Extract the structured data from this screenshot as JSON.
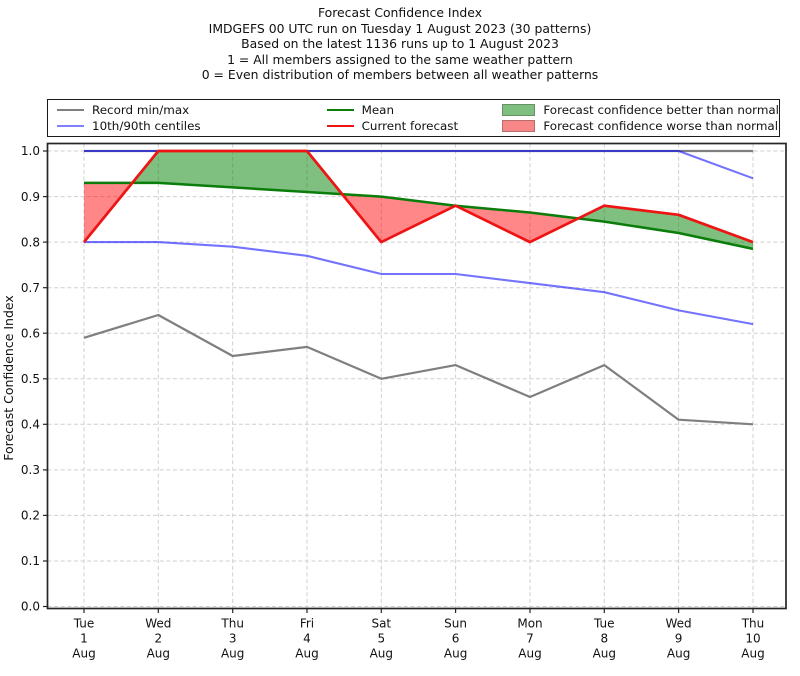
{
  "chart_data": {
    "type": "line",
    "title_lines": [
      "Forecast Confidence Index",
      "IMDGEFS 00 UTC run on Tuesday 1 August 2023 (30 patterns)",
      "Based on the latest 1136 runs up to 1 August 2023",
      "1 = All members assigned to the same weather pattern",
      "0 = Even distribution of members between all weather patterns"
    ],
    "ylabel": "Forecast Confidence Index",
    "ylim": [
      0.0,
      1.0
    ],
    "yticks": [
      0.0,
      0.1,
      0.2,
      0.3,
      0.4,
      0.5,
      0.6,
      0.7,
      0.8,
      0.9,
      1.0
    ],
    "grid": true,
    "legend_position": "top",
    "x": [
      {
        "weekday": "Tue",
        "day": "1",
        "month": "Aug"
      },
      {
        "weekday": "Wed",
        "day": "2",
        "month": "Aug"
      },
      {
        "weekday": "Thu",
        "day": "3",
        "month": "Aug"
      },
      {
        "weekday": "Fri",
        "day": "4",
        "month": "Aug"
      },
      {
        "weekday": "Sat",
        "day": "5",
        "month": "Aug"
      },
      {
        "weekday": "Sun",
        "day": "6",
        "month": "Aug"
      },
      {
        "weekday": "Mon",
        "day": "7",
        "month": "Aug"
      },
      {
        "weekday": "Tue",
        "day": "8",
        "month": "Aug"
      },
      {
        "weekday": "Wed",
        "day": "9",
        "month": "Aug"
      },
      {
        "weekday": "Thu",
        "day": "10",
        "month": "Aug"
      }
    ],
    "series": [
      {
        "name": "Record max",
        "role": "record_max",
        "color": "#7f7f7f",
        "width": 2.2,
        "values": [
          1.0,
          1.0,
          1.0,
          1.0,
          1.0,
          1.0,
          1.0,
          1.0,
          1.0,
          1.0
        ]
      },
      {
        "name": "Record min",
        "role": "record_min",
        "color": "#7f7f7f",
        "width": 2.2,
        "values": [
          0.59,
          0.64,
          0.55,
          0.57,
          0.5,
          0.53,
          0.46,
          0.53,
          0.41,
          0.4
        ]
      },
      {
        "name": "90th centile",
        "role": "p90",
        "color": "rgba(0,0,255,0.55)",
        "width": 2.1,
        "values": [
          1.0,
          1.0,
          1.0,
          1.0,
          1.0,
          1.0,
          1.0,
          1.0,
          1.0,
          0.94
        ]
      },
      {
        "name": "10th centile",
        "role": "p10",
        "color": "rgba(0,0,255,0.55)",
        "width": 2.1,
        "values": [
          0.8,
          0.8,
          0.79,
          0.77,
          0.73,
          0.73,
          0.71,
          0.69,
          0.65,
          0.62
        ]
      },
      {
        "name": "Mean",
        "role": "mean",
        "color": "#0a7d0a",
        "width": 2.5,
        "values": [
          0.93,
          0.93,
          0.92,
          0.91,
          0.9,
          0.88,
          0.865,
          0.845,
          0.82,
          0.785
        ]
      },
      {
        "name": "Current forecast",
        "role": "forecast",
        "color": "#ee1414",
        "width": 2.7,
        "values": [
          0.8,
          1.0,
          1.0,
          1.0,
          0.8,
          0.88,
          0.8,
          0.88,
          0.86,
          0.8
        ]
      }
    ],
    "bands": [
      {
        "name": "Forecast confidence better than normal",
        "role": "better",
        "color": "rgba(0,128,0,0.5)",
        "between": [
          "forecast",
          "mean"
        ],
        "where": "forecast > mean"
      },
      {
        "name": "Forecast confidence worse than normal",
        "role": "worse",
        "color": "rgba(255,0,0,0.47)",
        "between": [
          "forecast",
          "mean"
        ],
        "where": "forecast < mean"
      }
    ]
  },
  "legend": {
    "items": [
      {
        "label": "Record min/max",
        "swatch": "line",
        "color": "#7f7f7f"
      },
      {
        "label": "10th/90th centiles",
        "swatch": "line",
        "color": "#7f7fff"
      },
      {
        "label": "Mean",
        "swatch": "line",
        "color": "#0a7d0a"
      },
      {
        "label": "Current forecast",
        "swatch": "line",
        "color": "#ee1414"
      },
      {
        "label": "Forecast confidence better than normal",
        "swatch": "patch",
        "color": "#7fbf7f"
      },
      {
        "label": "Forecast confidence worse than normal",
        "swatch": "patch",
        "color": "#f88888"
      }
    ]
  }
}
